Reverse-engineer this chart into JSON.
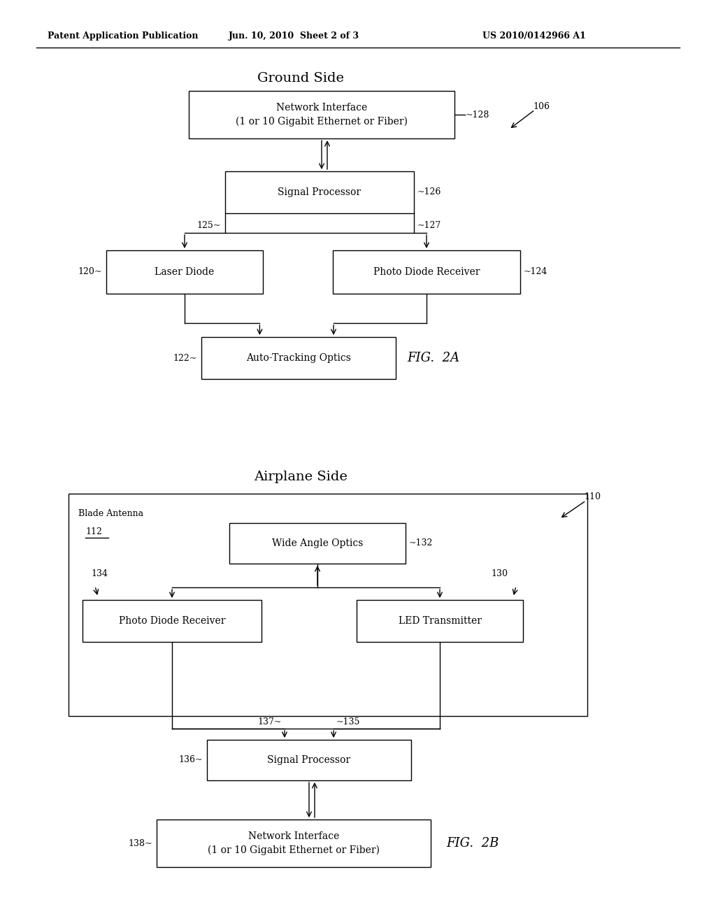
{
  "bg": "#ffffff",
  "header_left": "Patent Application Publication",
  "header_mid": "Jun. 10, 2010  Sheet 2 of 3",
  "header_right": "US 2010/0142966 A1",
  "fig2a_title": "Ground Side",
  "fig2b_title": "Airplane Side",
  "fig2a_caption": "FIG.  2A",
  "fig2b_caption": "FIG.  2B",
  "ref_106": "106",
  "ref_110": "110",
  "ni_label": "Network Interface\n(1 or 10 Gigabit Ethernet or Fiber)",
  "sp_label": "Signal Processor",
  "ld_label": "Laser Diode",
  "pd_label": "Photo Diode Receiver",
  "at_label": "Auto-Tracking Optics",
  "wa_label": "Wide Angle Optics",
  "pd2_label": "Photo Diode Receiver",
  "led_label": "LED Transmitter",
  "sp2_label": "Signal Processor",
  "ni2_label": "Network Interface\n(1 or 10 Gigabit Ethernet or Fiber)",
  "ba_label": "Blade Antenna",
  "ba_num": "112"
}
